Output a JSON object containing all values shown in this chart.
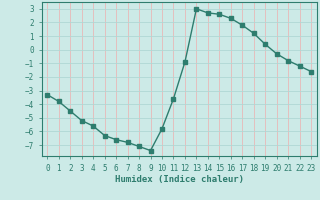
{
  "x": [
    0,
    1,
    2,
    3,
    4,
    5,
    6,
    7,
    8,
    9,
    10,
    11,
    12,
    13,
    14,
    15,
    16,
    17,
    18,
    19,
    20,
    21,
    22,
    23
  ],
  "y": [
    -3.3,
    -3.8,
    -4.5,
    -5.2,
    -5.6,
    -6.3,
    -6.6,
    -6.8,
    -7.1,
    -7.4,
    -5.8,
    -3.6,
    -0.9,
    3.0,
    2.7,
    2.6,
    2.3,
    1.8,
    1.2,
    0.4,
    -0.3,
    -0.8,
    -1.2,
    -1.6
  ],
  "line_color": "#2e7d6e",
  "bg_color": "#cceae7",
  "grid_major_color": "#b0d8d4",
  "grid_minor_color": "#e8b8b8",
  "xlabel": "Humidex (Indice chaleur)",
  "ylim": [
    -7.8,
    3.5
  ],
  "xlim": [
    -0.5,
    23.5
  ],
  "yticks": [
    -7,
    -6,
    -5,
    -4,
    -3,
    -2,
    -1,
    0,
    1,
    2,
    3
  ],
  "xticks": [
    0,
    1,
    2,
    3,
    4,
    5,
    6,
    7,
    8,
    9,
    10,
    11,
    12,
    13,
    14,
    15,
    16,
    17,
    18,
    19,
    20,
    21,
    22,
    23
  ],
  "marker": "s",
  "markersize": 2.5,
  "linewidth": 1.0,
  "tick_fontsize": 5.5,
  "xlabel_fontsize": 6.5
}
